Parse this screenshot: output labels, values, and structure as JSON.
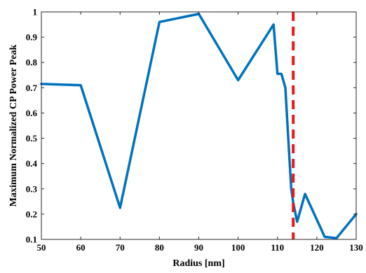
{
  "chart_data": {
    "type": "line",
    "xlabel": "Radius [nm]",
    "ylabel": "Maximum Normalized CP Power Peak",
    "xlim": [
      50,
      130
    ],
    "ylim": [
      0.1,
      1
    ],
    "x_ticks": [
      "50",
      "60",
      "70",
      "80",
      "90",
      "100",
      "110",
      "120",
      "130"
    ],
    "y_ticks": [
      "0.1",
      "0.2",
      "0.3",
      "0.4",
      "0.5",
      "0.6",
      "0.7",
      "0.8",
      "0.9",
      "1"
    ],
    "grid": false,
    "series": [
      {
        "color": "#0072bd",
        "x": [
          50,
          60,
          70,
          80,
          90,
          100,
          109,
          110,
          111,
          112,
          113,
          113.5,
          114,
          115,
          117,
          122,
          125,
          130
        ],
        "y": [
          0.715,
          0.71,
          0.225,
          0.96,
          0.992,
          0.73,
          0.95,
          0.755,
          0.755,
          0.7,
          0.43,
          0.3,
          0.245,
          0.17,
          0.28,
          0.11,
          0.105,
          0.2
        ]
      }
    ],
    "reference_line": {
      "orientation": "vertical",
      "x": 114,
      "color": "#e41a1c",
      "style": "dashed"
    }
  }
}
